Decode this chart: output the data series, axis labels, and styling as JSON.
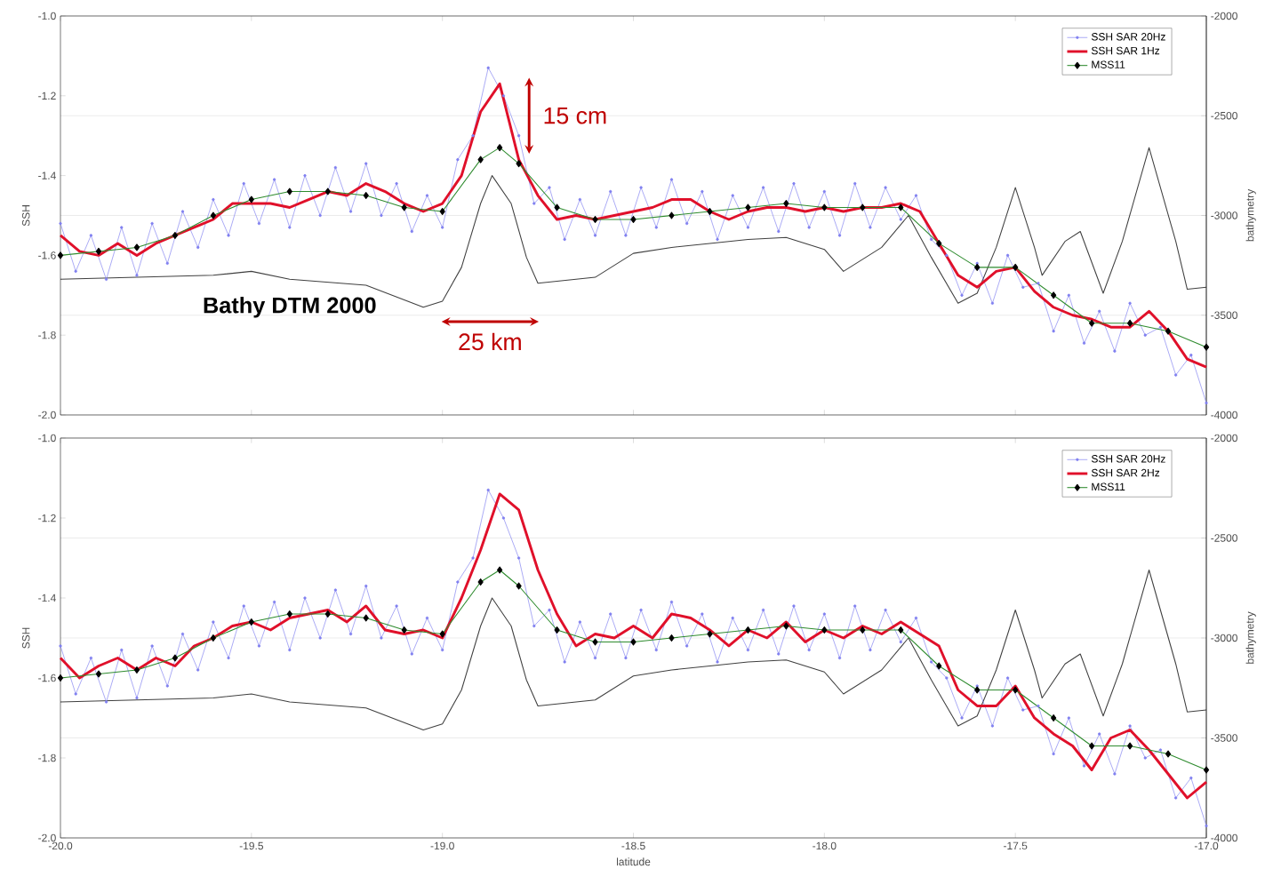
{
  "chart_data": [
    {
      "type": "line",
      "xlim": [
        -20,
        -17
      ],
      "ylim": [
        -2,
        -1
      ],
      "y2lim": [
        -4000,
        -2000
      ],
      "tick_labels": "y",
      "grid": "y",
      "legend": "top right",
      "ylabel": "SSH",
      "y2label": "bathymetry",
      "xticks": [
        -20,
        -19.5,
        -19,
        -18.5,
        -18,
        -17.5,
        -17
      ],
      "yticks": [
        {
          "value": -1,
          "label": "-1.0"
        },
        {
          "value": -1.2,
          "label": "-1.2"
        },
        {
          "value": -1.4,
          "label": "-1.4"
        },
        {
          "value": -1.6,
          "label": "-1.6"
        },
        {
          "value": -1.8,
          "label": "-1.8"
        },
        {
          "value": -2,
          "label": "-2.0"
        }
      ],
      "y2ticks": [
        -2000,
        -2500,
        -3000,
        -3500,
        -4000
      ],
      "annotations": [
        "15 cm",
        "25 km"
      ],
      "series": [
        {
          "name": "SSH SAR 20Hz",
          "color": "#8080f0",
          "marker": "circle",
          "x": [
            -20.0,
            -19.96,
            -19.92,
            -19.88,
            -19.84,
            -19.8,
            -19.76,
            -19.72,
            -19.68,
            -19.64,
            -19.6,
            -19.56,
            -19.52,
            -19.48,
            -19.44,
            -19.4,
            -19.36,
            -19.32,
            -19.28,
            -19.24,
            -19.2,
            -19.16,
            -19.12,
            -19.08,
            -19.04,
            -19.0,
            -18.96,
            -18.92,
            -18.88,
            -18.84,
            -18.8,
            -18.76,
            -18.72,
            -18.68,
            -18.64,
            -18.6,
            -18.56,
            -18.52,
            -18.48,
            -18.44,
            -18.4,
            -18.36,
            -18.32,
            -18.28,
            -18.24,
            -18.2,
            -18.16,
            -18.12,
            -18.08,
            -18.04,
            -18.0,
            -17.96,
            -17.92,
            -17.88,
            -17.84,
            -17.8,
            -17.76,
            -17.72,
            -17.68,
            -17.64,
            -17.6,
            -17.56,
            -17.52,
            -17.48,
            -17.44,
            -17.4,
            -17.36,
            -17.32,
            -17.28,
            -17.24,
            -17.2,
            -17.16,
            -17.12,
            -17.08,
            -17.04,
            -17.0
          ],
          "values": [
            -1.52,
            -1.64,
            -1.55,
            -1.66,
            -1.53,
            -1.65,
            -1.52,
            -1.62,
            -1.49,
            -1.58,
            -1.46,
            -1.55,
            -1.42,
            -1.52,
            -1.41,
            -1.53,
            -1.4,
            -1.5,
            -1.38,
            -1.49,
            -1.37,
            -1.5,
            -1.42,
            -1.54,
            -1.45,
            -1.53,
            -1.36,
            -1.3,
            -1.13,
            -1.2,
            -1.3,
            -1.47,
            -1.43,
            -1.56,
            -1.46,
            -1.55,
            -1.44,
            -1.55,
            -1.43,
            -1.53,
            -1.41,
            -1.52,
            -1.44,
            -1.56,
            -1.45,
            -1.53,
            -1.43,
            -1.54,
            -1.42,
            -1.53,
            -1.44,
            -1.55,
            -1.42,
            -1.53,
            -1.43,
            -1.51,
            -1.45,
            -1.56,
            -1.6,
            -1.7,
            -1.62,
            -1.72,
            -1.6,
            -1.68,
            -1.67,
            -1.79,
            -1.7,
            -1.82,
            -1.74,
            -1.84,
            -1.72,
            -1.8,
            -1.78,
            -1.9,
            -1.85,
            -1.97
          ]
        },
        {
          "name": "SSH SAR 1Hz",
          "color": "#e0102a",
          "marker": "none",
          "x": [
            -20.0,
            -19.95,
            -19.9,
            -19.85,
            -19.8,
            -19.75,
            -19.7,
            -19.65,
            -19.6,
            -19.55,
            -19.5,
            -19.45,
            -19.4,
            -19.35,
            -19.3,
            -19.25,
            -19.2,
            -19.15,
            -19.1,
            -19.05,
            -19.0,
            -18.95,
            -18.9,
            -18.85,
            -18.8,
            -18.75,
            -18.7,
            -18.65,
            -18.6,
            -18.55,
            -18.5,
            -18.45,
            -18.4,
            -18.35,
            -18.3,
            -18.25,
            -18.2,
            -18.15,
            -18.1,
            -18.05,
            -18.0,
            -17.95,
            -17.9,
            -17.85,
            -17.8,
            -17.75,
            -17.7,
            -17.65,
            -17.6,
            -17.55,
            -17.5,
            -17.45,
            -17.4,
            -17.35,
            -17.3,
            -17.25,
            -17.2,
            -17.15,
            -17.1,
            -17.05,
            -17.0
          ],
          "values": [
            -1.55,
            -1.59,
            -1.6,
            -1.57,
            -1.6,
            -1.57,
            -1.55,
            -1.53,
            -1.51,
            -1.47,
            -1.47,
            -1.47,
            -1.48,
            -1.46,
            -1.44,
            -1.45,
            -1.42,
            -1.44,
            -1.47,
            -1.49,
            -1.47,
            -1.4,
            -1.24,
            -1.17,
            -1.36,
            -1.45,
            -1.51,
            -1.5,
            -1.51,
            -1.5,
            -1.49,
            -1.48,
            -1.46,
            -1.46,
            -1.49,
            -1.51,
            -1.49,
            -1.48,
            -1.48,
            -1.49,
            -1.48,
            -1.49,
            -1.48,
            -1.48,
            -1.47,
            -1.49,
            -1.57,
            -1.65,
            -1.68,
            -1.64,
            -1.63,
            -1.69,
            -1.73,
            -1.75,
            -1.76,
            -1.78,
            -1.78,
            -1.74,
            -1.79,
            -1.86,
            -1.88
          ]
        },
        {
          "name": "MSS11",
          "color": "#2e8b2e",
          "marker": "diamond",
          "x": [
            -20.0,
            -19.9,
            -19.8,
            -19.7,
            -19.6,
            -19.5,
            -19.4,
            -19.3,
            -19.2,
            -19.1,
            -19.0,
            -18.9,
            -18.85,
            -18.8,
            -18.7,
            -18.6,
            -18.5,
            -18.4,
            -18.3,
            -18.2,
            -18.1,
            -18.0,
            -17.9,
            -17.8,
            -17.7,
            -17.6,
            -17.5,
            -17.4,
            -17.3,
            -17.2,
            -17.1,
            -17.0
          ],
          "values": [
            -1.6,
            -1.59,
            -1.58,
            -1.55,
            -1.5,
            -1.46,
            -1.44,
            -1.44,
            -1.45,
            -1.48,
            -1.49,
            -1.36,
            -1.33,
            -1.37,
            -1.48,
            -1.51,
            -1.51,
            -1.5,
            -1.49,
            -1.48,
            -1.47,
            -1.48,
            -1.48,
            -1.48,
            -1.57,
            -1.63,
            -1.63,
            -1.7,
            -1.77,
            -1.77,
            -1.79,
            -1.83
          ]
        },
        {
          "name": "Bathy DTM 2000",
          "color": "#404040",
          "marker": "none",
          "axis": "y2",
          "x": [
            -20.0,
            -19.8,
            -19.6,
            -19.5,
            -19.4,
            -19.2,
            -19.05,
            -19.0,
            -18.95,
            -18.9,
            -18.87,
            -18.82,
            -18.78,
            -18.75,
            -18.6,
            -18.5,
            -18.4,
            -18.3,
            -18.2,
            -18.1,
            -18.0,
            -17.95,
            -17.85,
            -17.78,
            -17.72,
            -17.65,
            -17.6,
            -17.55,
            -17.5,
            -17.45,
            -17.43,
            -17.37,
            -17.33,
            -17.27,
            -17.22,
            -17.15,
            -17.08,
            -17.05,
            -17.0
          ],
          "values": [
            -3320,
            -3310,
            -3300,
            -3280,
            -3320,
            -3350,
            -3460,
            -3430,
            -3260,
            -2940,
            -2800,
            -2940,
            -3210,
            -3340,
            -3310,
            -3190,
            -3160,
            -3140,
            -3120,
            -3110,
            -3170,
            -3280,
            -3160,
            -3000,
            -3210,
            -3440,
            -3390,
            -3160,
            -2860,
            -3160,
            -3300,
            -3130,
            -3080,
            -3390,
            -3130,
            -2660,
            -3130,
            -3370,
            -3360
          ]
        }
      ]
    },
    {
      "type": "line",
      "xlim": [
        -20,
        -17
      ],
      "ylim": [
        -2,
        -1
      ],
      "y2lim": [
        -4000,
        -2000
      ],
      "grid": "y",
      "legend": "top right",
      "xlabel": "latitude",
      "ylabel": "SSH",
      "y2label": "bathymetry",
      "xticks": [
        {
          "value": -20,
          "label": "-20.0"
        },
        {
          "value": -19.5,
          "label": "-19.5"
        },
        {
          "value": -19,
          "label": "-19.0"
        },
        {
          "value": -18.5,
          "label": "-18.5"
        },
        {
          "value": -18,
          "label": "-18.0"
        },
        {
          "value": -17.5,
          "label": "-17.5"
        },
        {
          "value": -17,
          "label": "-17.0"
        }
      ],
      "yticks": [
        {
          "value": -1,
          "label": "-1.0"
        },
        {
          "value": -1.2,
          "label": "-1.2"
        },
        {
          "value": -1.4,
          "label": "-1.4"
        },
        {
          "value": -1.6,
          "label": "-1.6"
        },
        {
          "value": -1.8,
          "label": "-1.8"
        },
        {
          "value": -2,
          "label": "-2.0"
        }
      ],
      "y2ticks": [
        -2000,
        -2500,
        -3000,
        -3500,
        -4000
      ],
      "series": [
        {
          "name": "SSH SAR 20Hz",
          "color": "#8080f0",
          "marker": "circle",
          "x": [
            -20.0,
            -19.96,
            -19.92,
            -19.88,
            -19.84,
            -19.8,
            -19.76,
            -19.72,
            -19.68,
            -19.64,
            -19.6,
            -19.56,
            -19.52,
            -19.48,
            -19.44,
            -19.4,
            -19.36,
            -19.32,
            -19.28,
            -19.24,
            -19.2,
            -19.16,
            -19.12,
            -19.08,
            -19.04,
            -19.0,
            -18.96,
            -18.92,
            -18.88,
            -18.84,
            -18.8,
            -18.76,
            -18.72,
            -18.68,
            -18.64,
            -18.6,
            -18.56,
            -18.52,
            -18.48,
            -18.44,
            -18.4,
            -18.36,
            -18.32,
            -18.28,
            -18.24,
            -18.2,
            -18.16,
            -18.12,
            -18.08,
            -18.04,
            -18.0,
            -17.96,
            -17.92,
            -17.88,
            -17.84,
            -17.8,
            -17.76,
            -17.72,
            -17.68,
            -17.64,
            -17.6,
            -17.56,
            -17.52,
            -17.48,
            -17.44,
            -17.4,
            -17.36,
            -17.32,
            -17.28,
            -17.24,
            -17.2,
            -17.16,
            -17.12,
            -17.08,
            -17.04,
            -17.0
          ],
          "values": [
            -1.52,
            -1.64,
            -1.55,
            -1.66,
            -1.53,
            -1.65,
            -1.52,
            -1.62,
            -1.49,
            -1.58,
            -1.46,
            -1.55,
            -1.42,
            -1.52,
            -1.41,
            -1.53,
            -1.4,
            -1.5,
            -1.38,
            -1.49,
            -1.37,
            -1.5,
            -1.42,
            -1.54,
            -1.45,
            -1.53,
            -1.36,
            -1.3,
            -1.13,
            -1.2,
            -1.3,
            -1.47,
            -1.43,
            -1.56,
            -1.46,
            -1.55,
            -1.44,
            -1.55,
            -1.43,
            -1.53,
            -1.41,
            -1.52,
            -1.44,
            -1.56,
            -1.45,
            -1.53,
            -1.43,
            -1.54,
            -1.42,
            -1.53,
            -1.44,
            -1.55,
            -1.42,
            -1.53,
            -1.43,
            -1.51,
            -1.45,
            -1.56,
            -1.6,
            -1.7,
            -1.62,
            -1.72,
            -1.6,
            -1.68,
            -1.67,
            -1.79,
            -1.7,
            -1.82,
            -1.74,
            -1.84,
            -1.72,
            -1.8,
            -1.78,
            -1.9,
            -1.85,
            -1.97
          ]
        },
        {
          "name": "SSH SAR 2Hz",
          "color": "#e0102a",
          "marker": "none",
          "x": [
            -20.0,
            -19.95,
            -19.9,
            -19.85,
            -19.8,
            -19.75,
            -19.7,
            -19.65,
            -19.6,
            -19.55,
            -19.5,
            -19.45,
            -19.4,
            -19.35,
            -19.3,
            -19.25,
            -19.2,
            -19.15,
            -19.1,
            -19.05,
            -19.0,
            -18.95,
            -18.9,
            -18.85,
            -18.8,
            -18.75,
            -18.7,
            -18.65,
            -18.6,
            -18.55,
            -18.5,
            -18.45,
            -18.4,
            -18.35,
            -18.3,
            -18.25,
            -18.2,
            -18.15,
            -18.1,
            -18.05,
            -18.0,
            -17.95,
            -17.9,
            -17.85,
            -17.8,
            -17.75,
            -17.7,
            -17.65,
            -17.6,
            -17.55,
            -17.5,
            -17.45,
            -17.4,
            -17.35,
            -17.3,
            -17.25,
            -17.2,
            -17.15,
            -17.1,
            -17.05,
            -17.0
          ],
          "values": [
            -1.55,
            -1.6,
            -1.57,
            -1.55,
            -1.58,
            -1.55,
            -1.57,
            -1.52,
            -1.5,
            -1.47,
            -1.46,
            -1.48,
            -1.45,
            -1.44,
            -1.43,
            -1.46,
            -1.42,
            -1.48,
            -1.49,
            -1.48,
            -1.5,
            -1.4,
            -1.28,
            -1.14,
            -1.18,
            -1.33,
            -1.44,
            -1.52,
            -1.49,
            -1.5,
            -1.47,
            -1.5,
            -1.44,
            -1.45,
            -1.48,
            -1.52,
            -1.48,
            -1.5,
            -1.46,
            -1.51,
            -1.48,
            -1.5,
            -1.47,
            -1.49,
            -1.46,
            -1.49,
            -1.52,
            -1.63,
            -1.67,
            -1.67,
            -1.62,
            -1.7,
            -1.74,
            -1.77,
            -1.83,
            -1.75,
            -1.73,
            -1.78,
            -1.84,
            -1.9,
            -1.86
          ]
        },
        {
          "name": "MSS11",
          "color": "#2e8b2e",
          "marker": "diamond",
          "x": [
            -20.0,
            -19.9,
            -19.8,
            -19.7,
            -19.6,
            -19.5,
            -19.4,
            -19.3,
            -19.2,
            -19.1,
            -19.0,
            -18.9,
            -18.85,
            -18.8,
            -18.7,
            -18.6,
            -18.5,
            -18.4,
            -18.3,
            -18.2,
            -18.1,
            -18.0,
            -17.9,
            -17.8,
            -17.7,
            -17.6,
            -17.5,
            -17.4,
            -17.3,
            -17.2,
            -17.1,
            -17.0
          ],
          "values": [
            -1.6,
            -1.59,
            -1.58,
            -1.55,
            -1.5,
            -1.46,
            -1.44,
            -1.44,
            -1.45,
            -1.48,
            -1.49,
            -1.36,
            -1.33,
            -1.37,
            -1.48,
            -1.51,
            -1.51,
            -1.5,
            -1.49,
            -1.48,
            -1.47,
            -1.48,
            -1.48,
            -1.48,
            -1.57,
            -1.63,
            -1.63,
            -1.7,
            -1.77,
            -1.77,
            -1.79,
            -1.83
          ]
        },
        {
          "color": "#404040",
          "marker": "none",
          "axis": "y2",
          "x": [
            -20.0,
            -19.8,
            -19.6,
            -19.5,
            -19.4,
            -19.2,
            -19.05,
            -19.0,
            -18.95,
            -18.9,
            -18.87,
            -18.82,
            -18.78,
            -18.75,
            -18.6,
            -18.5,
            -18.4,
            -18.3,
            -18.2,
            -18.1,
            -18.0,
            -17.95,
            -17.85,
            -17.78,
            -17.72,
            -17.65,
            -17.6,
            -17.55,
            -17.5,
            -17.45,
            -17.43,
            -17.37,
            -17.33,
            -17.27,
            -17.22,
            -17.15,
            -17.08,
            -17.05,
            -17.0
          ],
          "values": [
            -3320,
            -3310,
            -3300,
            -3280,
            -3320,
            -3350,
            -3460,
            -3430,
            -3260,
            -2940,
            -2800,
            -2940,
            -3210,
            -3340,
            -3310,
            -3190,
            -3160,
            -3140,
            -3120,
            -3110,
            -3170,
            -3280,
            -3160,
            -3000,
            -3210,
            -3440,
            -3390,
            -3160,
            -2860,
            -3160,
            -3300,
            -3130,
            -3080,
            -3390,
            -3130,
            -2660,
            -3130,
            -3370,
            -3360
          ]
        }
      ]
    }
  ]
}
